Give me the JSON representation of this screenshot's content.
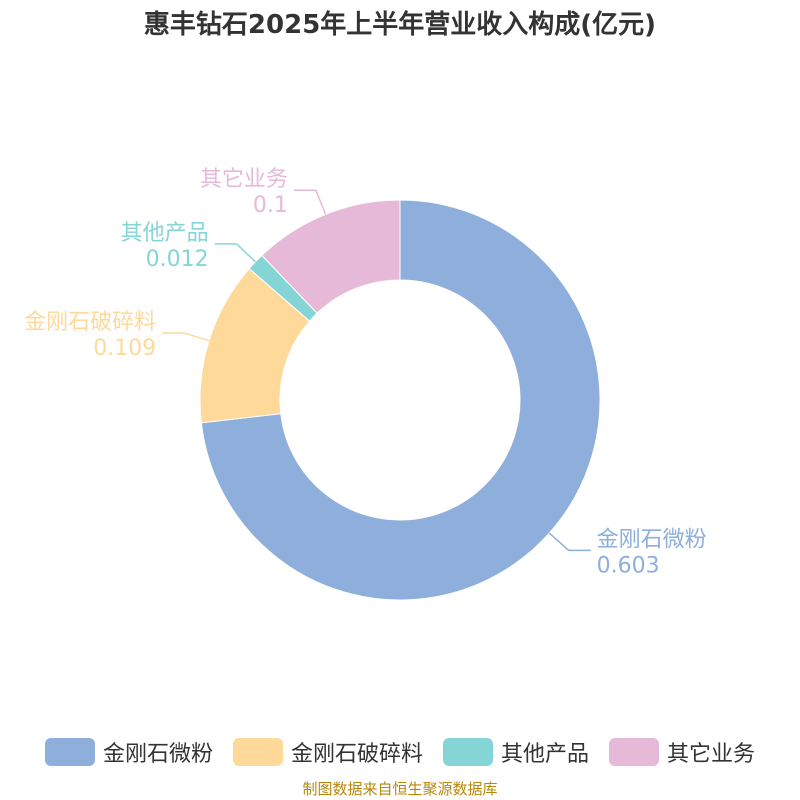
{
  "chart_data": {
    "type": "pie",
    "title": "惠丰钻石2025年上半年营业收入构成(亿元)",
    "donut": true,
    "categories": [
      "金刚石微粉",
      "金刚石破碎料",
      "其他产品",
      "其它业务"
    ],
    "values": [
      0.603,
      0.109,
      0.012,
      0.1
    ],
    "value_labels": [
      "0.603",
      "0.109",
      "0.012",
      "0.1"
    ],
    "colors": [
      "#8eaedb",
      "#ffd99a",
      "#86d5d6",
      "#e6b9d9"
    ],
    "legend_position": "bottom"
  },
  "source": "制图数据来自恒生聚源数据库"
}
